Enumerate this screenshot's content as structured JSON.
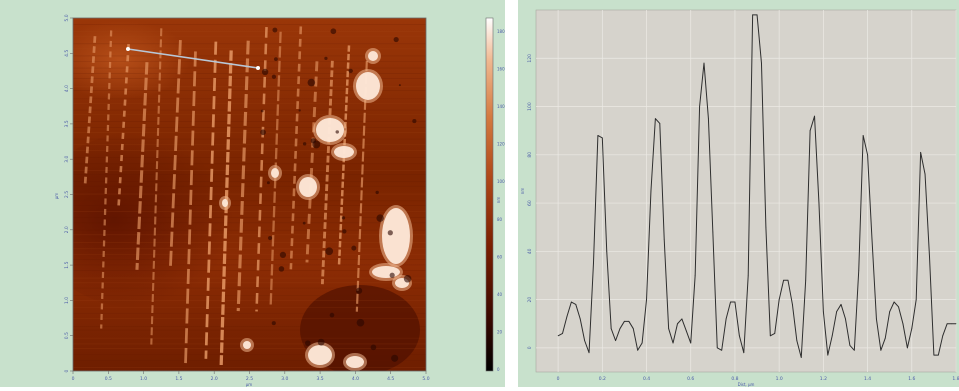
{
  "colors": {
    "panel_bg": "#c8e1cc",
    "plot_bg": "#d6d3cc",
    "grid": "#eceae5",
    "profile_line": "#2e2e2e",
    "axis_text": "#4a5aa8",
    "afm_colormap": [
      "#000000",
      "#3a0800",
      "#7a1e00",
      "#b04818",
      "#d47a40",
      "#f0b890",
      "#ffffff"
    ]
  },
  "afm_image": {
    "x_ticks": [
      "0",
      "0.5",
      "1.0",
      "1.5",
      "2.0",
      "2.5",
      "3.0",
      "3.5",
      "4.0",
      "4.5",
      "5.0"
    ],
    "y_ticks": [
      "0",
      "0.5",
      "1.0",
      "1.5",
      "2.0",
      "2.5",
      "3.0",
      "3.5",
      "4.0",
      "4.5",
      "5.0"
    ],
    "x_unit": "µm",
    "y_unit": "µm",
    "colorbar_ticks": [
      "0",
      "20",
      "40",
      "60",
      "80",
      "100",
      "120",
      "140",
      "160",
      "180"
    ],
    "colorbar_unit": "nm"
  },
  "chart_data": {
    "type": "line",
    "xlabel": "Dist, µm",
    "ylabel": "nm",
    "xlim": [
      -0.1,
      1.8
    ],
    "ylim": [
      -10,
      140
    ],
    "x_ticks": [
      "0",
      "0.2",
      "0.4",
      "0.6",
      "0.8",
      "1.0",
      "1.2",
      "1.4",
      "1.6",
      "1.8"
    ],
    "y_ticks": [
      "0",
      "20",
      "40",
      "60",
      "80",
      "100",
      "120"
    ],
    "grid": true,
    "series": [
      {
        "x": [
          0.0,
          0.02,
          0.04,
          0.06,
          0.08,
          0.1,
          0.12,
          0.14,
          0.16,
          0.18,
          0.2,
          0.22,
          0.24,
          0.26,
          0.28,
          0.3,
          0.32,
          0.34,
          0.36,
          0.38,
          0.4,
          0.42,
          0.44,
          0.46,
          0.48,
          0.5,
          0.52,
          0.54,
          0.56,
          0.58,
          0.6,
          0.62,
          0.64,
          0.66,
          0.68,
          0.7,
          0.72,
          0.74,
          0.76,
          0.78,
          0.8,
          0.82,
          0.84,
          0.86,
          0.88,
          0.9,
          0.92,
          0.94,
          0.96,
          0.98,
          1.0,
          1.02,
          1.04,
          1.06,
          1.08,
          1.1,
          1.12,
          1.14,
          1.16,
          1.18,
          1.2,
          1.22,
          1.24,
          1.26,
          1.28,
          1.3,
          1.32,
          1.34,
          1.36,
          1.38,
          1.4,
          1.42,
          1.44,
          1.46,
          1.48,
          1.5,
          1.52,
          1.54,
          1.56,
          1.58,
          1.6,
          1.62,
          1.64,
          1.66,
          1.68,
          1.7,
          1.72,
          1.74,
          1.76,
          1.78,
          1.8
        ],
        "y": [
          5,
          6,
          13,
          19,
          18,
          12,
          3,
          -2,
          35,
          88,
          87,
          40,
          8,
          3,
          8,
          11,
          11,
          8,
          -1,
          2,
          20,
          65,
          95,
          93,
          45,
          8,
          2,
          10,
          12,
          7,
          2,
          30,
          100,
          118,
          95,
          48,
          0,
          -1,
          12,
          19,
          19,
          5,
          -2,
          30,
          138,
          138,
          118,
          50,
          5,
          6,
          20,
          28,
          28,
          18,
          3,
          -4,
          28,
          90,
          96,
          60,
          15,
          -3,
          5,
          15,
          18,
          12,
          1,
          -1,
          32,
          88,
          80,
          45,
          12,
          -1,
          4,
          15,
          19,
          17,
          10,
          0,
          8,
          20,
          81,
          72,
          38,
          -3,
          -3,
          5,
          10,
          10,
          10
        ]
      }
    ]
  }
}
